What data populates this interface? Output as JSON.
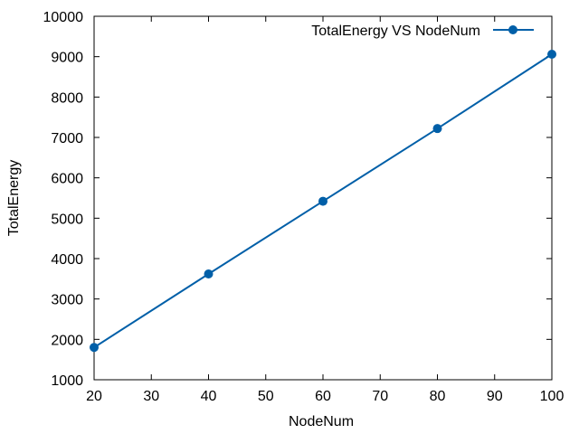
{
  "chart_data": {
    "type": "line",
    "title": "",
    "xlabel": "NodeNum",
    "ylabel": "TotalEnergy",
    "xlim": [
      20,
      100
    ],
    "ylim": [
      1000,
      10000
    ],
    "xticks": [
      20,
      30,
      40,
      50,
      60,
      70,
      80,
      90,
      100
    ],
    "yticks": [
      1000,
      2000,
      3000,
      4000,
      5000,
      6000,
      7000,
      8000,
      9000,
      10000
    ],
    "grid": false,
    "legend_position": "top-right",
    "series": [
      {
        "name": "TotalEnergy VS NodeNum",
        "color": "#005fa8",
        "marker": "circle",
        "x": [
          20,
          40,
          60,
          80,
          100
        ],
        "y": [
          1800,
          3620,
          5420,
          7220,
          9060
        ]
      }
    ]
  }
}
